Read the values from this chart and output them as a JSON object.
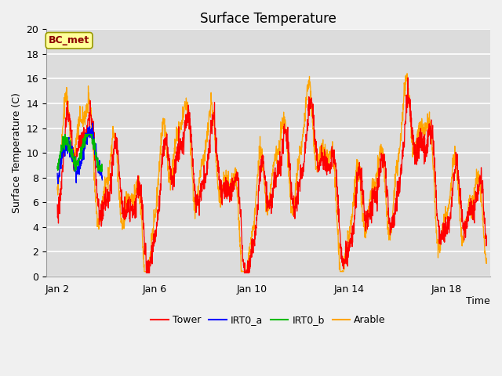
{
  "title": "Surface Temperature",
  "ylabel": "Surface Temperature (C)",
  "xlabel": "Time",
  "ylim": [
    0,
    20
  ],
  "xlim_start": 1.55,
  "xlim_end": 19.8,
  "annotation_label": "BC_met",
  "annotation_color_text": "#8B0000",
  "annotation_color_box": "#FFFF99",
  "annotation_color_border": "#999900",
  "fig_bg_color": "#F0F0F0",
  "plot_bg_color": "#DCDCDC",
  "upper_band_color": "#C8C8C8",
  "legend_items": [
    {
      "label": "Tower",
      "color": "#FF0000"
    },
    {
      "label": "IRT0_a",
      "color": "#0000FF"
    },
    {
      "label": "IRT0_b",
      "color": "#00BB00"
    },
    {
      "label": "Arable",
      "color": "#FFA500"
    }
  ],
  "tick_positions": [
    2,
    6,
    10,
    14,
    18
  ],
  "tick_labels": [
    "Jan 2",
    "Jan 6",
    "Jan 10",
    "Jan 14",
    "Jan 18"
  ],
  "ytick_positions": [
    0,
    2,
    4,
    6,
    8,
    10,
    12,
    14,
    16,
    18,
    20
  ],
  "grid_color": "#FFFFFF",
  "num_points": 2000,
  "x_start": 2.0,
  "x_end": 19.65,
  "irt_end": 3.85
}
